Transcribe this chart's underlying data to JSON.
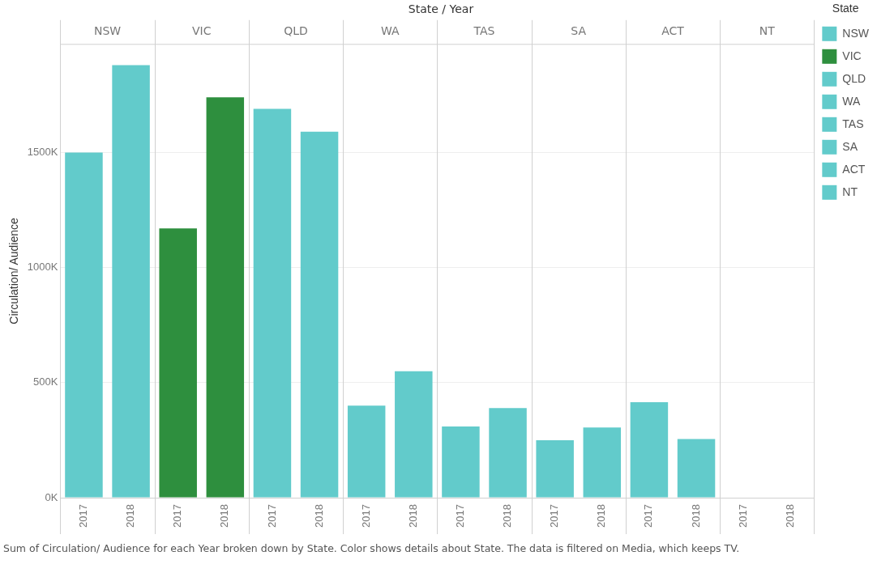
{
  "chart_data": {
    "type": "bar",
    "xlabel": "State / Year",
    "ylabel": "Circulation/ Audience",
    "legend_title": "State",
    "legend": "top right",
    "grid": "y",
    "categories": [
      "2017",
      "2018",
      "2017",
      "2018",
      "2017",
      "2018",
      "2017",
      "2018",
      "2017",
      "2018",
      "2017",
      "2018",
      "2017",
      "2018",
      "2017",
      "2018"
    ],
    "ylim": [
      0,
      1970000
    ],
    "yticks": [
      {
        "value": 0,
        "label": "0K"
      },
      {
        "value": 500000,
        "label": "500K"
      },
      {
        "value": 1000000,
        "label": "1000K"
      },
      {
        "value": 1500000,
        "label": "1500K"
      }
    ],
    "series": [
      {
        "name": "NSW",
        "color": "#62cbcb",
        "values": [
          1500000,
          1880000,
          null,
          null,
          null,
          null,
          null,
          null,
          null,
          null,
          null,
          null,
          null,
          null,
          null,
          null
        ]
      },
      {
        "name": "VIC",
        "color": "#2e8f3e",
        "values": [
          null,
          null,
          1170000,
          1740000,
          null,
          null,
          null,
          null,
          null,
          null,
          null,
          null,
          null,
          null,
          null,
          null
        ]
      },
      {
        "name": "QLD",
        "color": "#62cbcb",
        "values": [
          null,
          null,
          null,
          null,
          1690000,
          1590000,
          null,
          null,
          null,
          null,
          null,
          null,
          null,
          null,
          null,
          null
        ]
      },
      {
        "name": "WA",
        "color": "#62cbcb",
        "values": [
          null,
          null,
          null,
          null,
          null,
          null,
          400000,
          550000,
          null,
          null,
          null,
          null,
          null,
          null,
          null,
          null
        ]
      },
      {
        "name": "TAS",
        "color": "#62cbcb",
        "values": [
          null,
          null,
          null,
          null,
          null,
          null,
          null,
          null,
          310000,
          390000,
          null,
          null,
          null,
          null,
          null,
          null
        ]
      },
      {
        "name": "SA",
        "color": "#62cbcb",
        "values": [
          null,
          null,
          null,
          null,
          null,
          null,
          null,
          null,
          null,
          null,
          250000,
          305000,
          null,
          null,
          null,
          null
        ]
      },
      {
        "name": "ACT",
        "color": "#62cbcb",
        "values": [
          null,
          null,
          null,
          null,
          null,
          null,
          null,
          null,
          null,
          null,
          null,
          null,
          415000,
          255000,
          null,
          null
        ]
      },
      {
        "name": "NT",
        "color": "#62cbcb",
        "values": [
          null,
          null,
          null,
          null,
          null,
          null,
          null,
          null,
          null,
          null,
          null,
          null,
          null,
          null,
          null,
          null
        ]
      }
    ],
    "annotations": [
      "Sum of Circulation/ Audience for each Year broken down by State.  Color shows details about State. The data is filtered on Media, which keeps TV."
    ]
  }
}
